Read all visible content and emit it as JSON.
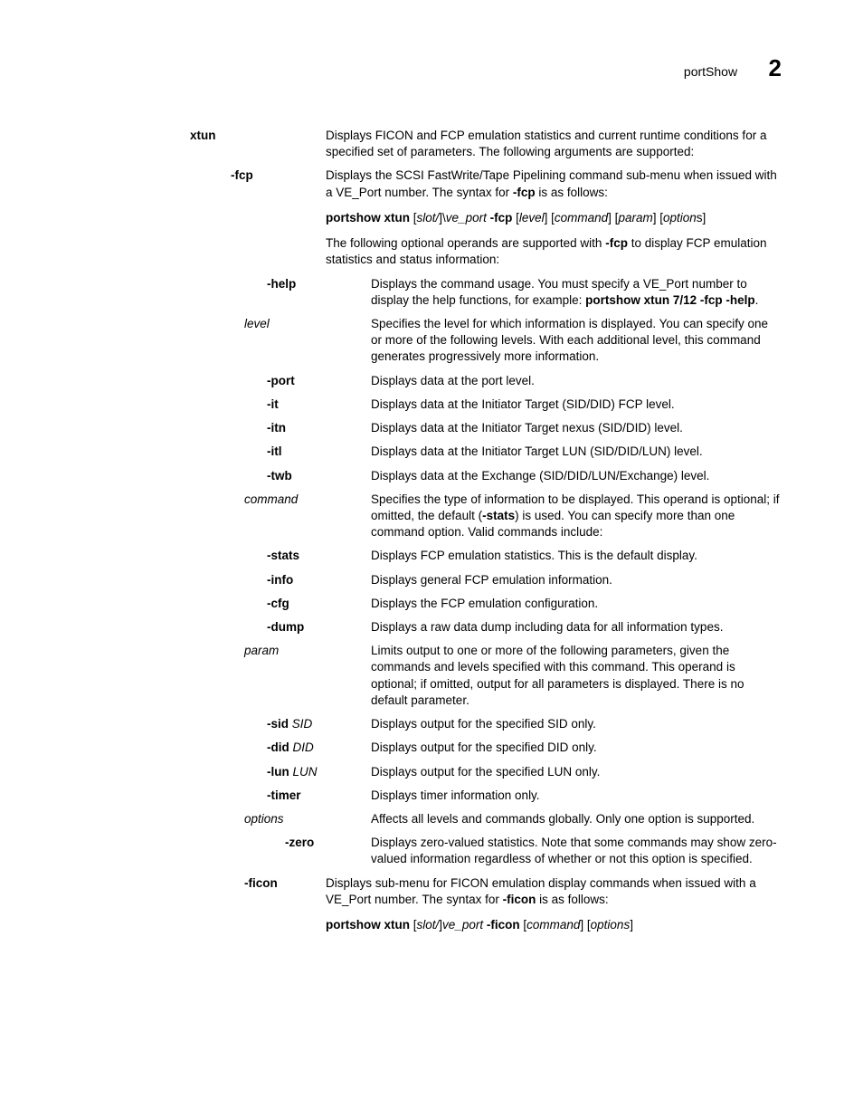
{
  "header": {
    "title": "portShow",
    "chapter": "2"
  },
  "rows": [
    {
      "term_indent": 120,
      "term_width": 150,
      "term_style": "bold",
      "term": "xtun",
      "desc_html": "Displays FICON and FCP emulation statistics and current runtime conditions for a specified set of parameters. The following arguments are supported:"
    },
    {
      "term_indent": 165,
      "term_width": 105,
      "term_style": "bold",
      "term": "-fcp",
      "desc_html": "Displays the SCSI FastWrite/Tape Pipelining command sub-menu when issued with a VE_Port number. The syntax for <span class='b'>-fcp</span> is as follows:"
    },
    {
      "term_indent": 270,
      "term_width": 0,
      "term_style": "none",
      "term": "",
      "desc_html": "<span class='b'>portshow xtun</span> [<span class='i'>slot/</span>]\\<span class='i'>ve_port</span> <span class='b'>-fcp</span> [<span class='i'>level</span>] [<span class='i'>command</span>] [<span class='i'>param</span>] [<span class='i'>option</span>s]",
      "is_syntax": true
    },
    {
      "term_indent": 270,
      "term_width": 0,
      "term_style": "none",
      "term": "",
      "desc_html": "The following optional operands are supported with <span class='b'>-fcp</span> to display FCP emulation statistics and status information:"
    },
    {
      "term_indent": 205,
      "term_width": 115,
      "term_style": "bold",
      "term": "-help",
      "desc_html": "Displays the command usage. You must specify a VE_Port number to display the help functions, for example: <span class='b'>portshow xtun 7/12 -fcp -help</span>."
    },
    {
      "term_indent": 180,
      "term_width": 140,
      "term_style": "italic",
      "term": "level",
      "desc_html": "Specifies the level for which information is displayed. You can specify one or more of the following levels. With each additional level, this command generates progressively more information."
    },
    {
      "term_indent": 205,
      "term_width": 115,
      "term_style": "bold",
      "term": "-port",
      "desc_html": "Displays data at the port level."
    },
    {
      "term_indent": 205,
      "term_width": 115,
      "term_style": "bold",
      "term": "-it",
      "desc_html": "Displays data at the Initiator Target (SID/DID) FCP level."
    },
    {
      "term_indent": 205,
      "term_width": 115,
      "term_style": "bold",
      "term": "-itn",
      "desc_html": "Displays data at the Initiator Target nexus (SID/DID) level."
    },
    {
      "term_indent": 205,
      "term_width": 115,
      "term_style": "bold",
      "term": "-itl",
      "desc_html": "Displays data at the Initiator Target LUN (SID/DID/LUN) level."
    },
    {
      "term_indent": 205,
      "term_width": 115,
      "term_style": "bold",
      "term": "-twb",
      "desc_html": "Displays data at the Exchange (SID/DID/LUN/Exchange) level."
    },
    {
      "term_indent": 180,
      "term_width": 140,
      "term_style": "italic",
      "term": "command",
      "desc_html": "Specifies the type of information to be displayed. This operand is optional; if omitted, the default (<span class='b'>-stats</span>) is used. You can specify more than one command option. Valid commands include:"
    },
    {
      "term_indent": 205,
      "term_width": 115,
      "term_style": "bold",
      "term": "-stats",
      "desc_html": "Displays FCP emulation statistics. This is the default display."
    },
    {
      "term_indent": 205,
      "term_width": 115,
      "term_style": "bold",
      "term": "-info",
      "desc_html": "Displays general FCP emulation information."
    },
    {
      "term_indent": 205,
      "term_width": 115,
      "term_style": "bold",
      "term": "-cfg",
      "desc_html": "Displays the FCP emulation configuration."
    },
    {
      "term_indent": 205,
      "term_width": 115,
      "term_style": "bold",
      "term": "-dump",
      "desc_html": "Displays a raw data dump including data for all information types."
    },
    {
      "term_indent": 180,
      "term_width": 140,
      "term_style": "italic",
      "term": "param",
      "desc_html": "Limits output to one or more of the following parameters, given the commands and levels specified with this command. This operand is optional; if omitted, output for all parameters is displayed. There is no default parameter."
    },
    {
      "term_indent": 205,
      "term_width": 115,
      "term_style": "mixed",
      "term_html": "<span class='b'>-sid</span> <span class='i'>SID</span>",
      "desc_html": "Displays output for the specified SID only."
    },
    {
      "term_indent": 205,
      "term_width": 115,
      "term_style": "mixed",
      "term_html": "<span class='b'>-did</span> <span class='i'>DID</span>",
      "desc_html": "Displays output for the specified DID only."
    },
    {
      "term_indent": 205,
      "term_width": 115,
      "term_style": "mixed",
      "term_html": "<span class='b'>-lun</span> <span class='i'>LUN</span>",
      "desc_html": "Displays output for the specified LUN only."
    },
    {
      "term_indent": 205,
      "term_width": 115,
      "term_style": "bold",
      "term": "-timer",
      "desc_html": "Displays timer information only."
    },
    {
      "term_indent": 180,
      "term_width": 140,
      "term_style": "italic",
      "term": "options",
      "desc_html": "Affects all levels and commands globally. Only one option is supported."
    },
    {
      "term_indent": 225,
      "term_width": 95,
      "term_style": "bold",
      "term": "-zero",
      "desc_html": "Displays zero-valued statistics. Note that some commands may show zero-valued information regardless of whether or not this option is specified."
    },
    {
      "term_indent": 180,
      "term_width": 90,
      "term_style": "bold",
      "term": "-ficon",
      "desc_html": "Displays sub-menu for FICON emulation display commands when issued with a VE_Port number. The syntax for <span class='b'>-ficon</span> is as follows:"
    },
    {
      "term_indent": 270,
      "term_width": 0,
      "term_style": "none",
      "term": "",
      "desc_html": "<span class='b'>portshow xtun</span> [<span class='i'>slot/</span>]<span class='i'>ve_port</span> <span class='b'>-ficon</span> [<span class='i'>command</span>] [<span class='i'>options</span>]",
      "is_syntax": true
    }
  ]
}
